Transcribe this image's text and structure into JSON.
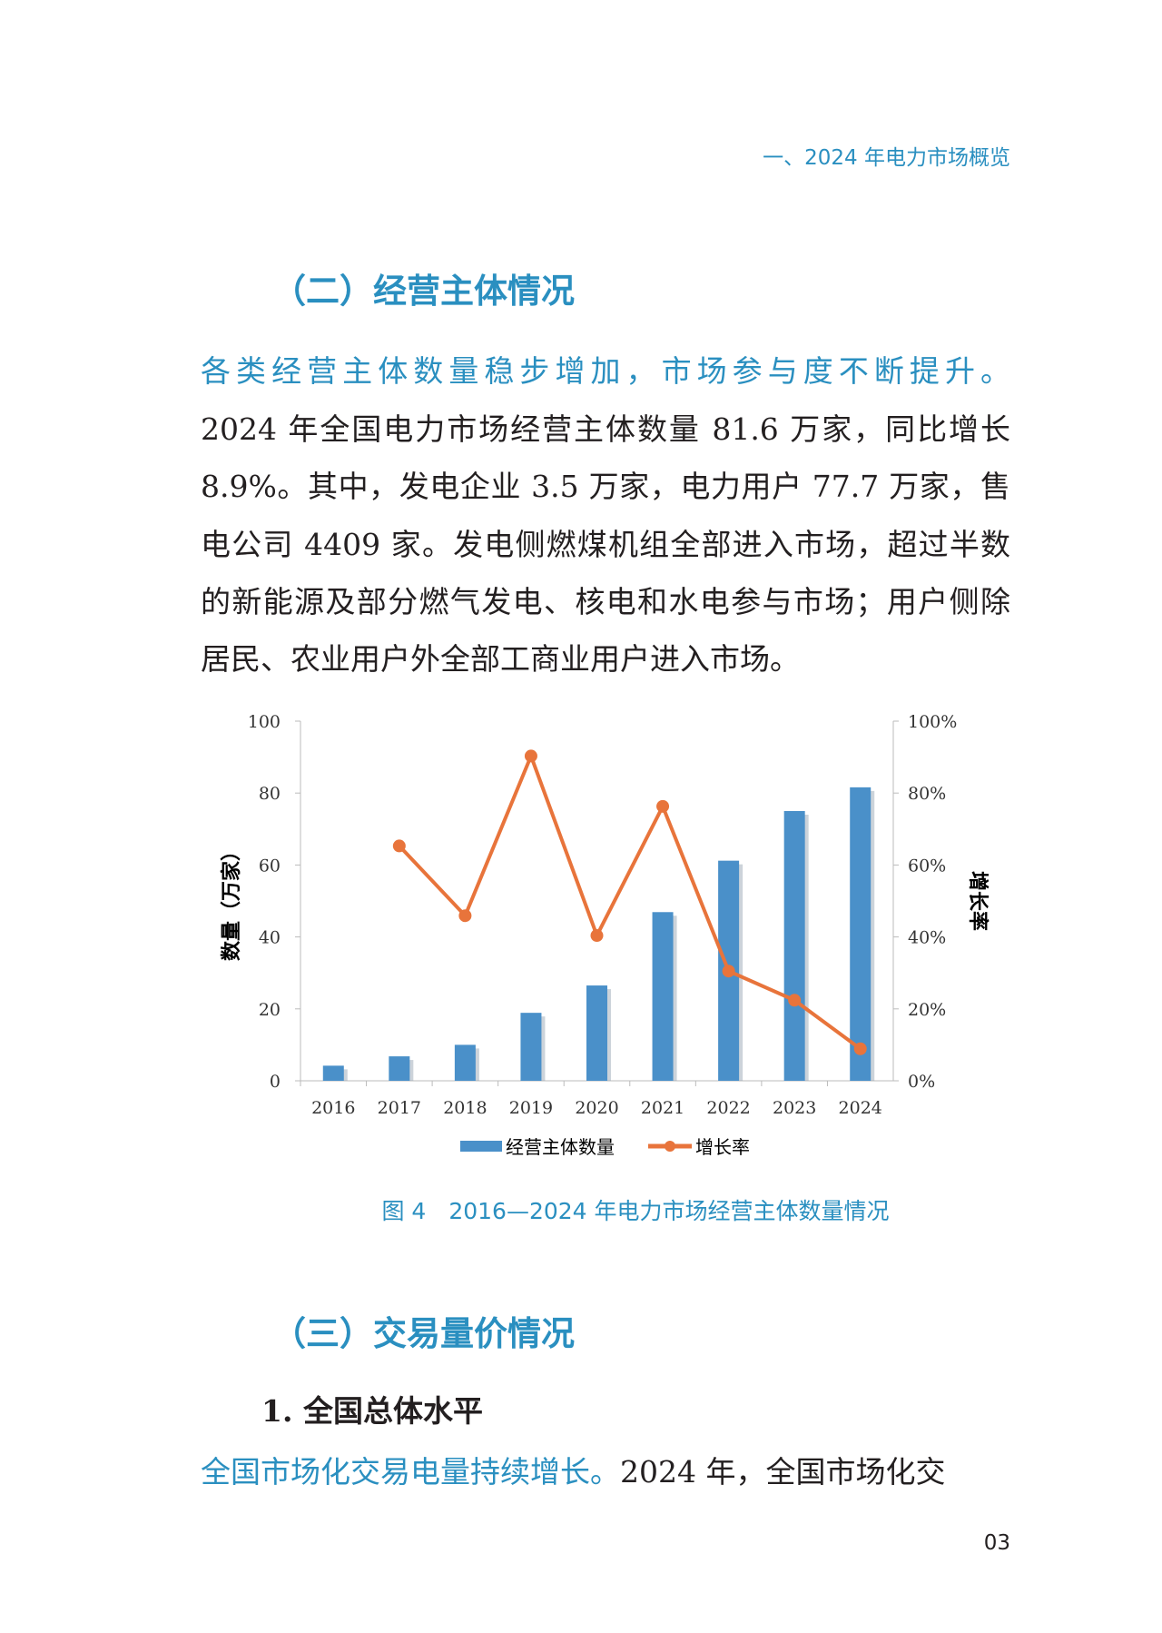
{
  "running_head": "一、2024 年电力市场概览",
  "section2": {
    "title": "（二）经营主体情况",
    "paragraph": {
      "lead": "各类经营主体数量稳步增加，市场参与度不断提升。",
      "lines": [
        "2024 年全国电力市场经营主体数量 81.6 万家，同比增长",
        "8.9%。其中，发电企业 3.5 万家，电力用户 77.7 万家，售",
        "电公司 4409 家。发电侧燃煤机组全部进入市场，超过半数",
        "的新能源及部分燃气发电、核电和水电参与市场；用户侧除",
        "居民、农业用户外全部工商业用户进入市场。"
      ]
    }
  },
  "chart_data": {
    "type": "bar",
    "categories": [
      "2016",
      "2017",
      "2018",
      "2019",
      "2020",
      "2021",
      "2022",
      "2023",
      "2024"
    ],
    "series": [
      {
        "name": "经营主体数量",
        "type": "bar",
        "axis": "left",
        "color": "#4a90c9",
        "values": [
          4.2,
          6.8,
          10.0,
          18.9,
          26.5,
          46.9,
          61.2,
          75.0,
          81.6
        ]
      },
      {
        "name": "增长率",
        "type": "line",
        "axis": "right",
        "color": "#e8743b",
        "values": [
          null,
          65.3,
          45.9,
          90.3,
          40.4,
          76.3,
          30.5,
          22.4,
          8.9
        ]
      }
    ],
    "ylabel": "数量（万家）",
    "y2label": "增长率",
    "ylim": [
      0,
      100
    ],
    "y2lim": [
      0,
      100
    ],
    "yticks": [
      "0",
      "20",
      "40",
      "60",
      "80",
      "100"
    ],
    "y2ticks": [
      "0%",
      "20%",
      "40%",
      "60%",
      "80%",
      "100%"
    ],
    "grid": false,
    "legend": "bottom"
  },
  "figure_caption": "图 4　2016—2024 年电力市场经营主体数量情况",
  "section3": {
    "title": "（三）交易量价情况",
    "subheading": "1. 全国总体水平",
    "lead": "全国市场化交易电量持续增长。",
    "text": "2024 年，全国市场化交"
  },
  "page_number": "03"
}
